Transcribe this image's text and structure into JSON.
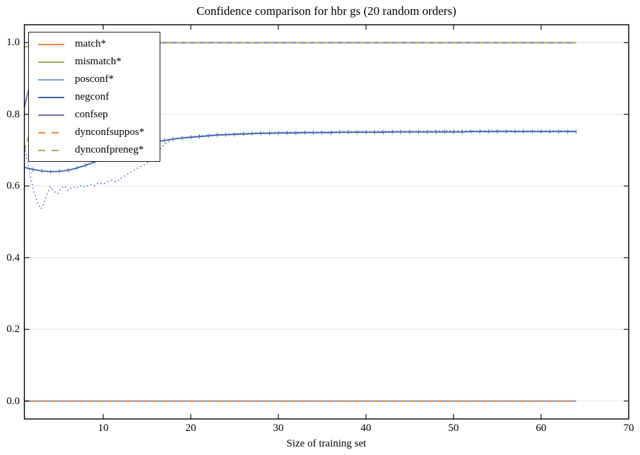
{
  "chart_data": {
    "type": "line",
    "title": "Confidence comparison for hbr gs (20 random orders)",
    "xlabel": "Size of training set",
    "ylabel": "",
    "xlim": [
      1,
      70
    ],
    "ylim": [
      -0.05,
      1.05
    ],
    "grid": "horizontal-only",
    "legend_position": "upper-left",
    "x_ticks": [
      {
        "value": 10,
        "label": "10"
      },
      {
        "value": 20,
        "label": "20"
      },
      {
        "value": 30,
        "label": "30"
      },
      {
        "value": 40,
        "label": "40"
      },
      {
        "value": 50,
        "label": "50"
      },
      {
        "value": 60,
        "label": "60"
      },
      {
        "value": 70,
        "label": "70"
      }
    ],
    "y_ticks": [
      {
        "value": 0.0,
        "label": "0.0"
      },
      {
        "value": 0.2,
        "label": "0.2"
      },
      {
        "value": 0.4,
        "label": "0.4"
      },
      {
        "value": 0.6,
        "label": "0.6"
      },
      {
        "value": 0.8,
        "label": "0.8"
      },
      {
        "value": 1.0,
        "label": "1.0"
      }
    ],
    "colors": {
      "orange": "#E8873E",
      "olive": "#A5AC63",
      "lightblue": "#7E9ECF",
      "blue": "#3E62AE",
      "purple": "#7C69B2",
      "dotted_blue": "#5B79C4",
      "grid": "#E3E3E3",
      "spine": "#000000"
    },
    "series": [
      {
        "name": "match*",
        "color": "#E8873E",
        "style": "solid",
        "width": 2,
        "in_legend": true,
        "points": [
          [
            1,
            0.0
          ],
          [
            64,
            0.0
          ]
        ]
      },
      {
        "name": "mismatch*",
        "color": "#A5AC63",
        "style": "solid",
        "width": 2,
        "in_legend": true,
        "points": [
          [
            1,
            0.988
          ],
          [
            2,
            0.993
          ],
          [
            3,
            0.997
          ],
          [
            4,
            0.999
          ],
          [
            5,
            1.0
          ],
          [
            64,
            1.0
          ]
        ]
      },
      {
        "name": "posconf*",
        "color": "#7E9ECF",
        "style": "solid",
        "width": 2,
        "in_legend": true,
        "points": [
          [
            1,
            0.0
          ],
          [
            64,
            0.0
          ]
        ]
      },
      {
        "name": "negconf",
        "color": "#3E62AE",
        "style": "solid",
        "width": 1.8,
        "in_legend": true,
        "tick_markers": true,
        "x0": 1,
        "dx": 1,
        "y": [
          0.652,
          0.646,
          0.642,
          0.64,
          0.641,
          0.644,
          0.65,
          0.658,
          0.667,
          0.677,
          0.687,
          0.697,
          0.705,
          0.712,
          0.718,
          0.723,
          0.727,
          0.731,
          0.734,
          0.736,
          0.738,
          0.74,
          0.742,
          0.743,
          0.744,
          0.745,
          0.746,
          0.747,
          0.747,
          0.748,
          0.748,
          0.748,
          0.749,
          0.749,
          0.749,
          0.749,
          0.75,
          0.75,
          0.75,
          0.75,
          0.75,
          0.75,
          0.751,
          0.751,
          0.751,
          0.751,
          0.751,
          0.751,
          0.751,
          0.751,
          0.751,
          0.752,
          0.752,
          0.752,
          0.752,
          0.752,
          0.752,
          0.752,
          0.752,
          0.752,
          0.752,
          0.752,
          0.752,
          0.752
        ]
      },
      {
        "name": "unlabeled-dotted-run",
        "color": "#5B79C4",
        "style": "dotted",
        "width": 1.6,
        "in_legend": false,
        "points": [
          [
            1,
            0.71
          ],
          [
            1.4,
            0.665
          ],
          [
            1.8,
            0.615
          ],
          [
            2.2,
            0.575
          ],
          [
            2.6,
            0.548
          ],
          [
            2.9,
            0.536
          ],
          [
            3.2,
            0.55
          ],
          [
            3.6,
            0.578
          ],
          [
            4,
            0.598
          ],
          [
            4.4,
            0.585
          ],
          [
            4.8,
            0.578
          ],
          [
            5.2,
            0.594
          ],
          [
            5.6,
            0.6
          ],
          [
            6,
            0.588
          ],
          [
            6.5,
            0.598
          ],
          [
            7,
            0.594
          ],
          [
            7.5,
            0.602
          ],
          [
            8,
            0.597
          ],
          [
            8.5,
            0.605
          ],
          [
            9,
            0.601
          ],
          [
            9.5,
            0.609
          ],
          [
            10,
            0.605
          ],
          [
            10.5,
            0.612
          ],
          [
            11,
            0.616
          ],
          [
            11.5,
            0.611
          ],
          [
            12,
            0.621
          ],
          [
            12.5,
            0.629
          ],
          [
            13,
            0.637
          ],
          [
            13.5,
            0.644
          ],
          [
            14,
            0.651
          ],
          [
            14.5,
            0.657
          ],
          [
            15,
            0.664
          ],
          [
            15.5,
            0.674
          ],
          [
            16,
            0.688
          ],
          [
            16.5,
            0.703
          ],
          [
            17,
            0.716
          ],
          [
            17.5,
            0.725
          ],
          [
            18,
            0.731
          ],
          [
            19,
            0.735
          ],
          [
            20,
            0.738
          ],
          [
            22,
            0.742
          ],
          [
            24,
            0.745
          ],
          [
            26,
            0.747
          ],
          [
            28,
            0.749
          ],
          [
            30,
            0.75
          ],
          [
            34,
            0.751
          ],
          [
            38,
            0.752
          ],
          [
            42,
            0.753
          ],
          [
            46,
            0.753
          ],
          [
            50,
            0.754
          ],
          [
            54,
            0.754
          ],
          [
            58,
            0.754
          ],
          [
            62,
            0.754
          ],
          [
            64,
            0.754
          ]
        ]
      },
      {
        "name": "confsep",
        "color": "#7C69B2",
        "style": "solid",
        "width": 1.8,
        "in_legend": true,
        "points": [
          [
            1,
            0.82
          ],
          [
            1.5,
            0.87
          ],
          [
            2,
            0.915
          ],
          [
            2.5,
            0.945
          ],
          [
            3,
            0.965
          ],
          [
            4,
            0.985
          ],
          [
            5,
            0.994
          ],
          [
            6,
            0.998
          ],
          [
            7,
            1.0
          ],
          [
            64,
            1.0
          ]
        ]
      },
      {
        "name": "dynconfsuppos*",
        "color": "#E8873E",
        "style": "dashed",
        "width": 2,
        "in_legend": true,
        "points": [
          [
            1,
            0.0
          ],
          [
            64,
            0.0
          ]
        ]
      },
      {
        "name": "dynconfpreneg*",
        "color": "#A5AC63",
        "style": "dashed",
        "width": 2,
        "in_legend": true,
        "points": [
          [
            1,
            0.7
          ],
          [
            2,
            0.78
          ],
          [
            3,
            0.85
          ],
          [
            4,
            0.91
          ],
          [
            5,
            0.95
          ],
          [
            6,
            0.98
          ],
          [
            7,
            0.995
          ],
          [
            8,
            1.0
          ],
          [
            64,
            1.0
          ]
        ]
      }
    ]
  },
  "legend": {
    "items": [
      {
        "label": "match*",
        "color": "#E8873E",
        "style": "solid"
      },
      {
        "label": "mismatch*",
        "color": "#A5AC63",
        "style": "solid"
      },
      {
        "label": "posconf*",
        "color": "#7E9ECF",
        "style": "solid"
      },
      {
        "label": "negconf",
        "color": "#3E62AE",
        "style": "solid"
      },
      {
        "label": "confsep",
        "color": "#7C69B2",
        "style": "solid"
      },
      {
        "label": "dynconfsuppos*",
        "color": "#E8873E",
        "style": "dashed"
      },
      {
        "label": "dynconfpreneg*",
        "color": "#A5AC63",
        "style": "dashed"
      }
    ]
  }
}
